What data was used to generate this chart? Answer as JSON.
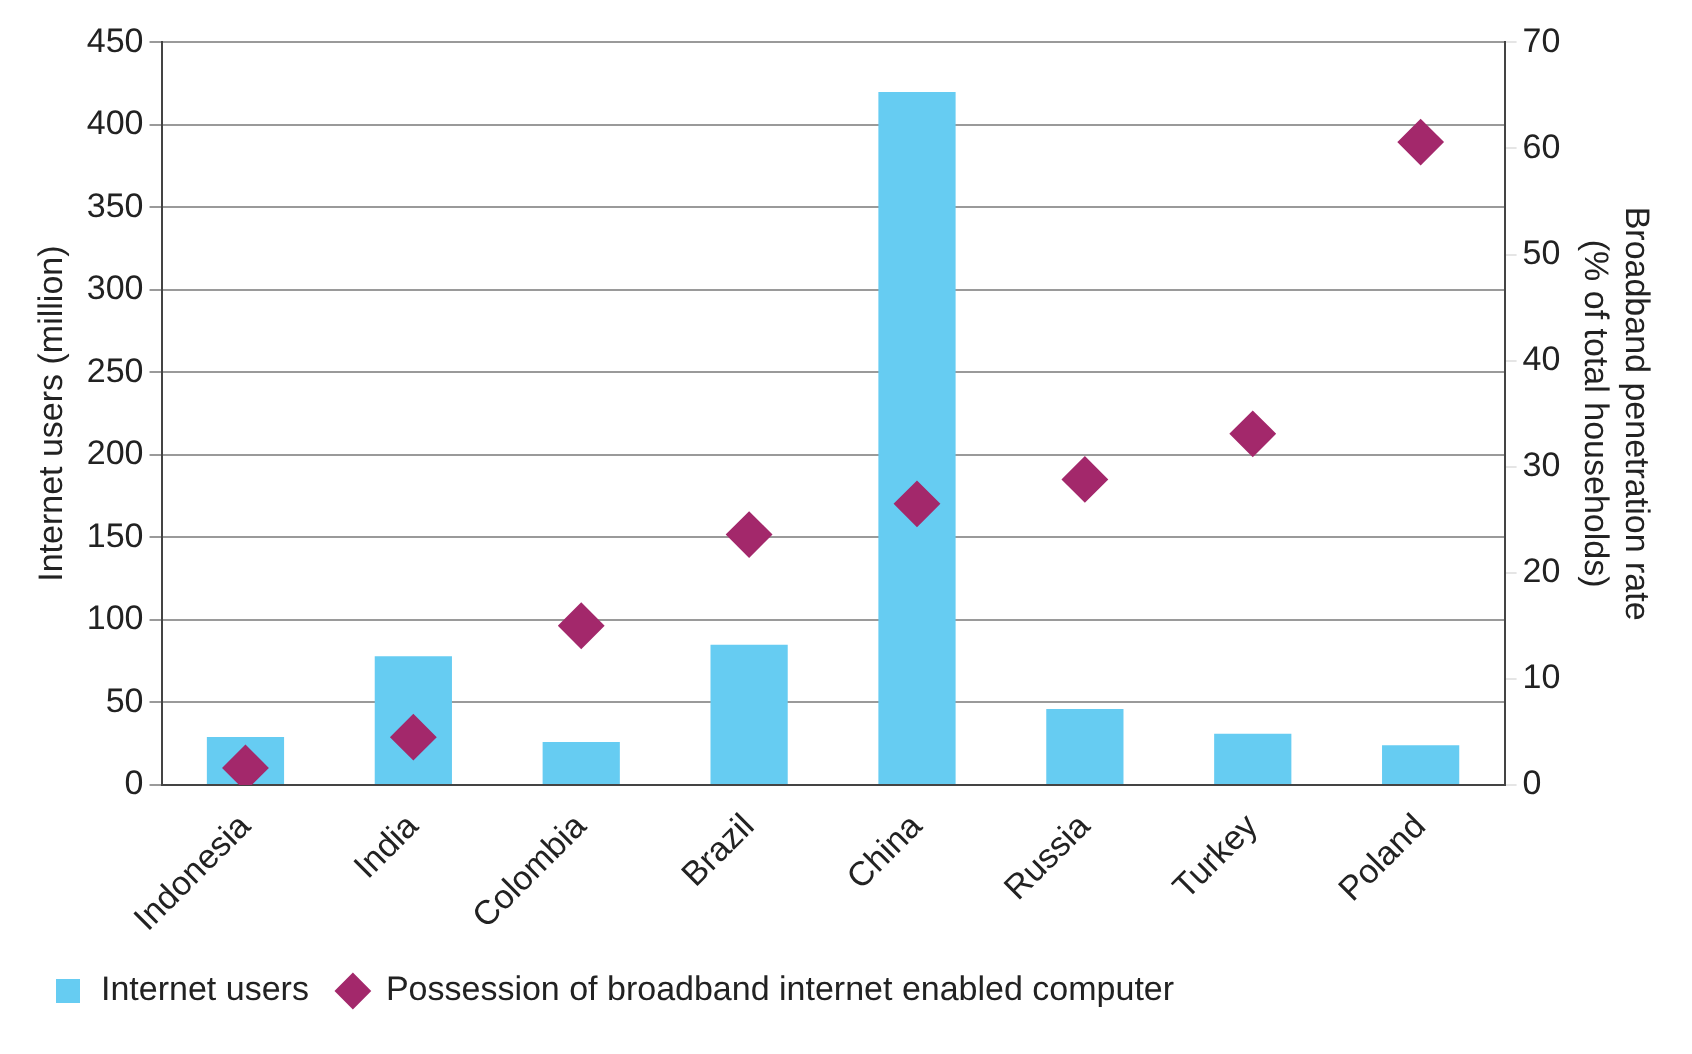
{
  "chart_data": {
    "type": "bar",
    "categories": [
      "Indonesia",
      "India",
      "Colombia",
      "Brazil",
      "China",
      "Russia",
      "Turkey",
      "Poland"
    ],
    "ylabel": "Internet users (million)",
    "y2label": "Broadband penetration rate\n(% of total households)",
    "series": [
      {
        "name": "Internet users",
        "color": "#66ccf2",
        "values": [
          29,
          78,
          26,
          85,
          420,
          46,
          31,
          24
        ]
      },
      {
        "name": "Possession of broadband internet enabled computer",
        "type": "scatter",
        "axis": "y2",
        "marker": "diamond",
        "color": "#a3286b",
        "values": [
          1.6,
          4.5,
          15,
          23.6,
          26.5,
          28.8,
          33.1,
          60.6
        ]
      }
    ],
    "ylim": [
      0,
      450
    ],
    "yticks": [
      0,
      50,
      100,
      150,
      200,
      250,
      300,
      350,
      400,
      450
    ],
    "y2lim": [
      0,
      70
    ],
    "y2ticks": [
      0,
      10,
      20,
      30,
      40,
      50,
      60,
      70
    ],
    "grid": "y",
    "legend": "bottom"
  }
}
